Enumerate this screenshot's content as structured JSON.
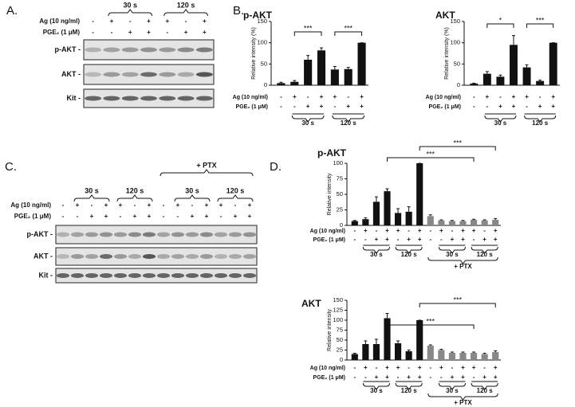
{
  "panels": [
    "A.",
    "B.",
    "C.",
    "D."
  ],
  "blots": [
    {
      "groups": [
        "30 s",
        "120 s"
      ],
      "rows": [
        {
          "label": "Ag (10 ng/ml)",
          "signs": [
            "-",
            "+",
            "-",
            "+",
            "+",
            "-",
            "+"
          ]
        },
        {
          "label": "PGE₂ (1 μM)",
          "signs": [
            "-",
            "-",
            "+",
            "+",
            "-",
            "+",
            "+"
          ]
        }
      ],
      "blot_labels": [
        "p-AKT -",
        "AKT -",
        "Kit -"
      ]
    },
    {
      "outer_group": "+ PTX",
      "groups": [
        "30 s",
        "120 s",
        "30 s",
        "120 s"
      ],
      "rows": [
        {
          "label": "Ag (10 ng/ml)",
          "signs": [
            "-",
            "+",
            "-",
            "+",
            "+",
            "-",
            "+",
            "-",
            "+",
            "-",
            "+",
            "+",
            "-",
            "+"
          ]
        },
        {
          "label": "PGE₂ (1 μM)",
          "signs": [
            "-",
            "-",
            "+",
            "+",
            "-",
            "+",
            "+",
            "-",
            "-",
            "+",
            "+",
            "-",
            "+",
            "+"
          ]
        }
      ],
      "blot_labels": [
        "p-AKT -",
        "AKT -",
        "Kit -"
      ]
    }
  ],
  "chart_data": [
    {
      "type": "bar",
      "title": "p-AKT",
      "y_label": "Relative intensity (%)",
      "values": [
        5,
        8,
        60,
        82,
        37,
        38,
        100
      ],
      "errors": [
        2,
        3,
        10,
        6,
        7,
        4,
        0
      ],
      "colors": [
        "#111",
        "#111",
        "#111",
        "#111",
        "#111",
        "#111",
        "#111"
      ],
      "ylim": [
        0,
        150
      ],
      "yticks": [
        0,
        50,
        100,
        150
      ],
      "rows": [
        {
          "label": "Ag (10 ng/ml)",
          "signs": [
            "-",
            "+",
            "-",
            "+",
            "+",
            "-",
            "+"
          ]
        },
        {
          "label": "PGE₂ (1 μM)",
          "signs": [
            "-",
            "-",
            "+",
            "+",
            "-",
            "+",
            "+"
          ]
        }
      ],
      "groups": [
        "30 s",
        "120 s"
      ],
      "annotations": [
        "***",
        "***"
      ]
    },
    {
      "type": "bar",
      "title": "AKT",
      "y_label": "Relative intensity (%)",
      "values": [
        4,
        27,
        20,
        95,
        42,
        10,
        100
      ],
      "errors": [
        1,
        5,
        4,
        22,
        6,
        2,
        0
      ],
      "colors": [
        "#111",
        "#111",
        "#111",
        "#111",
        "#111",
        "#111",
        "#111"
      ],
      "ylim": [
        0,
        150
      ],
      "yticks": [
        0,
        50,
        100,
        150
      ],
      "rows": [
        {
          "label": "Ag (10 ng/ml)",
          "signs": [
            "-",
            "+",
            "-",
            "+",
            "+",
            "-",
            "+"
          ]
        },
        {
          "label": "PGE₂ (1 μM)",
          "signs": [
            "-",
            "-",
            "+",
            "+",
            "-",
            "+",
            "+"
          ]
        }
      ],
      "groups": [
        "30 s",
        "120 s"
      ],
      "annotations": [
        "*",
        "***"
      ]
    },
    {
      "type": "bar",
      "title": "p-AKT",
      "y_label": "Relative intensity",
      "values": [
        7,
        10,
        38,
        55,
        20,
        22,
        100,
        15,
        8,
        7,
        7,
        9,
        8,
        9
      ],
      "errors": [
        1,
        2,
        8,
        4,
        7,
        8,
        0,
        2,
        1,
        1,
        1,
        1,
        1,
        2
      ],
      "colors": [
        "#111",
        "#111",
        "#111",
        "#111",
        "#111",
        "#111",
        "#111",
        "#888",
        "#888",
        "#888",
        "#888",
        "#888",
        "#888",
        "#888"
      ],
      "ylim": [
        0,
        100
      ],
      "yticks": [
        0,
        25,
        50,
        75,
        100
      ],
      "rows": [
        {
          "label": "Ag (10 ng/ml)",
          "signs": [
            "-",
            "+",
            "-",
            "+",
            "+",
            "-",
            "+",
            "-",
            "+",
            "-",
            "+",
            "+",
            "-",
            "+"
          ]
        },
        {
          "label": "PGE₂ (1 μM)",
          "signs": [
            "-",
            "-",
            "+",
            "+",
            "-",
            "+",
            "+",
            "-",
            "-",
            "+",
            "+",
            "-",
            "+",
            "+"
          ]
        }
      ],
      "groups": [
        "30 s",
        "120 s",
        "30 s",
        "120 s"
      ],
      "outer_group": "+ PTX",
      "annotations": [
        "***",
        "***"
      ]
    },
    {
      "type": "bar",
      "title": "AKT",
      "y_label": "Relative intensity",
      "values": [
        15,
        40,
        40,
        105,
        42,
        22,
        100,
        36,
        25,
        18,
        18,
        18,
        15,
        20
      ],
      "errors": [
        2,
        8,
        12,
        12,
        6,
        3,
        0,
        2,
        2,
        2,
        2,
        2,
        2,
        3
      ],
      "colors": [
        "#111",
        "#111",
        "#111",
        "#111",
        "#111",
        "#111",
        "#111",
        "#888",
        "#888",
        "#888",
        "#888",
        "#888",
        "#888",
        "#888"
      ],
      "ylim": [
        0,
        150
      ],
      "yticks": [
        0,
        25,
        50,
        75,
        100,
        125,
        150
      ],
      "rows": [
        {
          "label": "Ag (10 ng/ml)",
          "signs": [
            "-",
            "+",
            "-",
            "+",
            "+",
            "-",
            "+",
            "-",
            "+",
            "-",
            "+",
            "+",
            "-",
            "+"
          ]
        },
        {
          "label": "PGE₂ (1 μM)",
          "signs": [
            "-",
            "-",
            "+",
            "+",
            "-",
            "+",
            "+",
            "-",
            "-",
            "+",
            "+",
            "-",
            "+",
            "+"
          ]
        }
      ],
      "groups": [
        "30 s",
        "120 s",
        "30 s",
        "120 s"
      ],
      "outer_group": "+ PTX",
      "annotations": [
        "***",
        "***"
      ]
    }
  ]
}
